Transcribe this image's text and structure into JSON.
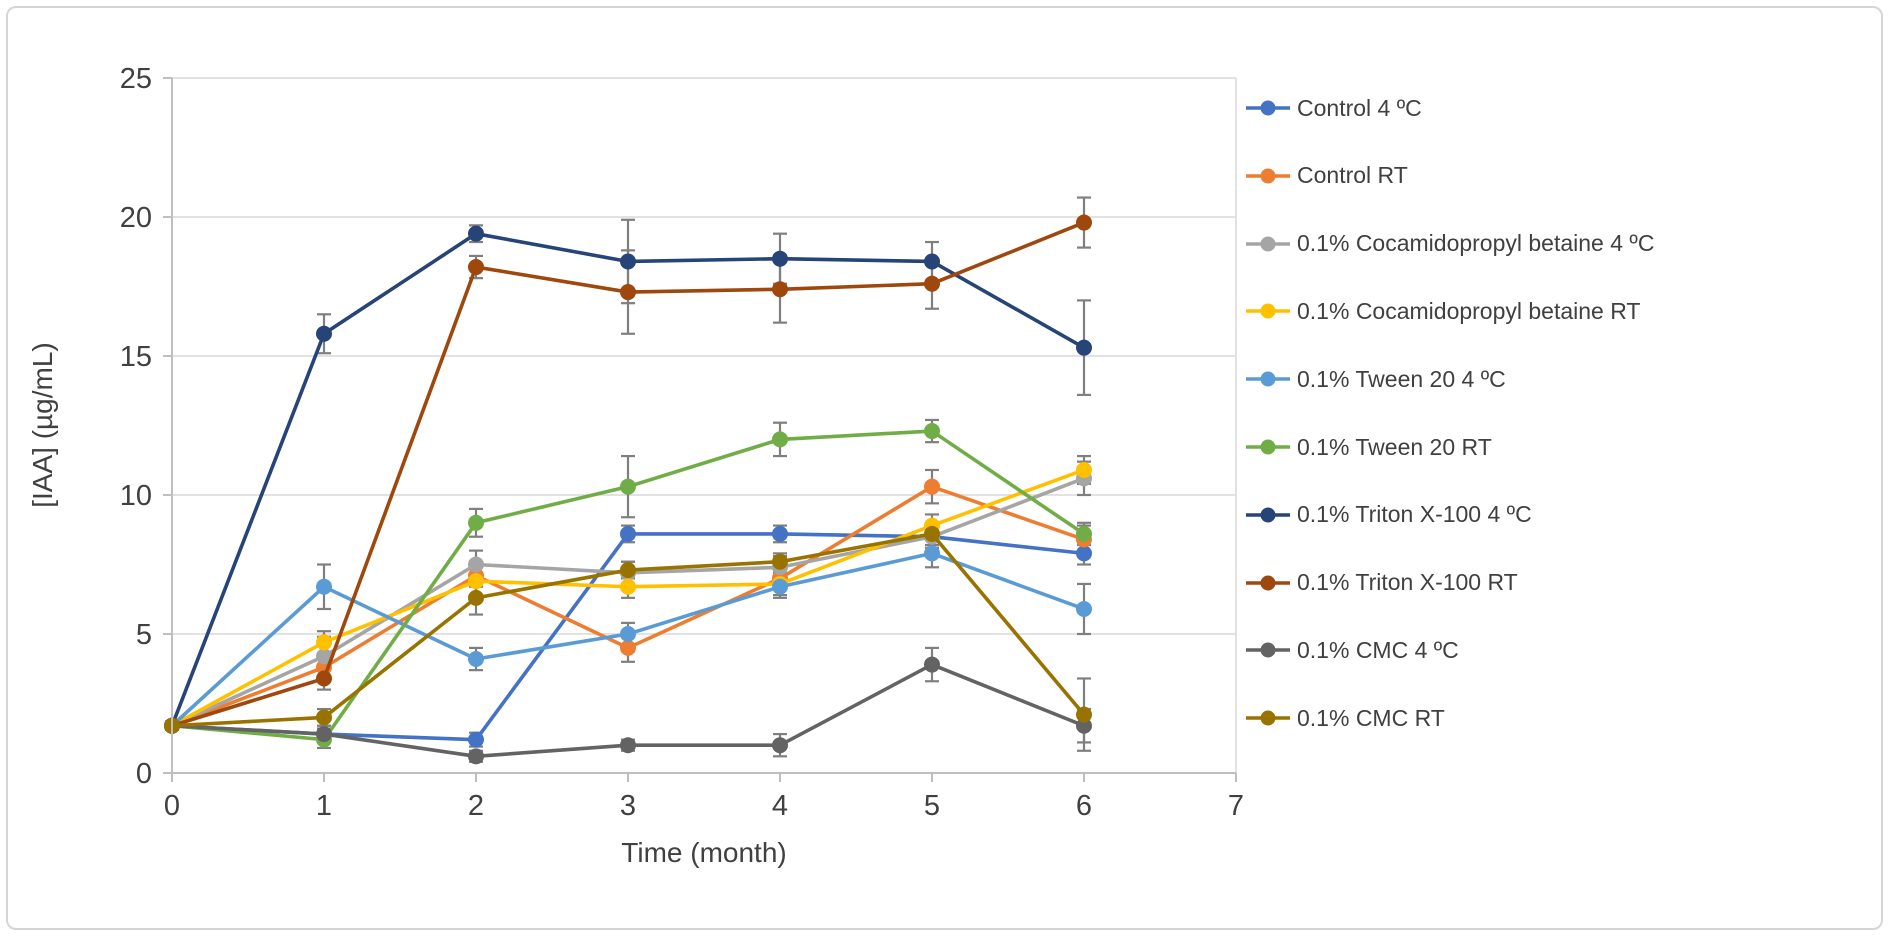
{
  "figure": {
    "y_tick_labels": [
      "0",
      "5",
      "10",
      "15",
      "20",
      "25"
    ],
    "x_tick_labels": [
      "0",
      "1",
      "2",
      "3",
      "4",
      "5",
      "6",
      "7"
    ]
  },
  "chart_data": {
    "type": "line",
    "title": "",
    "xlabel": "Time (month)",
    "ylabel": "[IAA] (µg/mL)",
    "x": [
      0,
      1,
      2,
      3,
      4,
      5,
      6
    ],
    "xlim": [
      0,
      7
    ],
    "ylim": [
      0,
      25
    ],
    "x_ticks": [
      0,
      1,
      2,
      3,
      4,
      5,
      6,
      7
    ],
    "y_ticks": [
      0,
      5,
      10,
      15,
      20,
      25
    ],
    "grid": "horizontal",
    "legend_position": "right",
    "gridline_color": "#d9d9d9",
    "axis_line_color": "#bfbfbf",
    "error_bar_color": "#7f7f7f",
    "series": [
      {
        "name": "Control 4 ºC",
        "color": "#4472C4",
        "values": [
          1.7,
          1.4,
          1.2,
          8.6,
          8.6,
          8.5,
          7.9
        ],
        "errors": [
          0.15,
          0.2,
          0.25,
          0.3,
          0.3,
          0.4,
          0.4
        ]
      },
      {
        "name": "Control RT",
        "color": "#ED7D31",
        "values": [
          1.7,
          3.8,
          7.1,
          4.5,
          7.0,
          10.3,
          8.4
        ],
        "errors": [
          0.15,
          0.3,
          0.4,
          0.5,
          0.4,
          0.6,
          0.5
        ]
      },
      {
        "name": "0.1% Cocamidopropyl betaine 4 ºC",
        "color": "#A5A5A5",
        "values": [
          1.7,
          4.2,
          7.5,
          7.2,
          7.4,
          8.5,
          10.6
        ],
        "errors": [
          0.15,
          0.7,
          0.5,
          0.4,
          0.4,
          0.5,
          0.6
        ]
      },
      {
        "name": "0.1% Cocamidopropyl betaine RT",
        "color": "#FFC000",
        "values": [
          1.7,
          4.7,
          6.9,
          6.7,
          6.8,
          8.9,
          10.9
        ],
        "errors": [
          0.15,
          0.4,
          0.5,
          0.4,
          0.4,
          0.4,
          0.5
        ]
      },
      {
        "name": "0.1% Tween 20 4 ºC",
        "color": "#5B9BD5",
        "values": [
          1.7,
          6.7,
          4.1,
          5.0,
          6.7,
          7.9,
          5.9
        ],
        "errors": [
          0.15,
          0.8,
          0.4,
          0.4,
          0.4,
          0.5,
          0.9
        ]
      },
      {
        "name": "0.1% Tween 20 RT",
        "color": "#70AD47",
        "values": [
          1.7,
          1.2,
          9.0,
          10.3,
          12.0,
          12.3,
          8.6
        ],
        "errors": [
          0.15,
          0.3,
          0.5,
          1.1,
          0.6,
          0.4,
          0.4
        ]
      },
      {
        "name": "0.1% Triton X-100 4 ºC",
        "color": "#264478",
        "values": [
          1.7,
          15.8,
          19.4,
          18.4,
          18.5,
          18.4,
          15.3
        ],
        "errors": [
          0.15,
          0.7,
          0.3,
          1.5,
          0.9,
          0.7,
          1.7
        ]
      },
      {
        "name": "0.1% Triton X-100 RT",
        "color": "#9E480E",
        "values": [
          1.7,
          3.4,
          18.2,
          17.3,
          17.4,
          17.6,
          19.8
        ],
        "errors": [
          0.15,
          0.4,
          0.4,
          1.5,
          1.2,
          0.9,
          0.9
        ]
      },
      {
        "name": "0.1% CMC 4 ºC",
        "color": "#636363",
        "values": [
          1.7,
          1.4,
          0.6,
          1.0,
          1.0,
          3.9,
          1.7
        ],
        "errors": [
          0.15,
          0.3,
          0.2,
          0.2,
          0.4,
          0.6,
          0.6
        ]
      },
      {
        "name": "0.1% CMC RT",
        "color": "#997300",
        "values": [
          1.7,
          2.0,
          6.3,
          7.3,
          7.6,
          8.6,
          2.1
        ],
        "errors": [
          0.15,
          0.3,
          0.6,
          0.3,
          0.3,
          0.4,
          1.3
        ]
      }
    ]
  }
}
